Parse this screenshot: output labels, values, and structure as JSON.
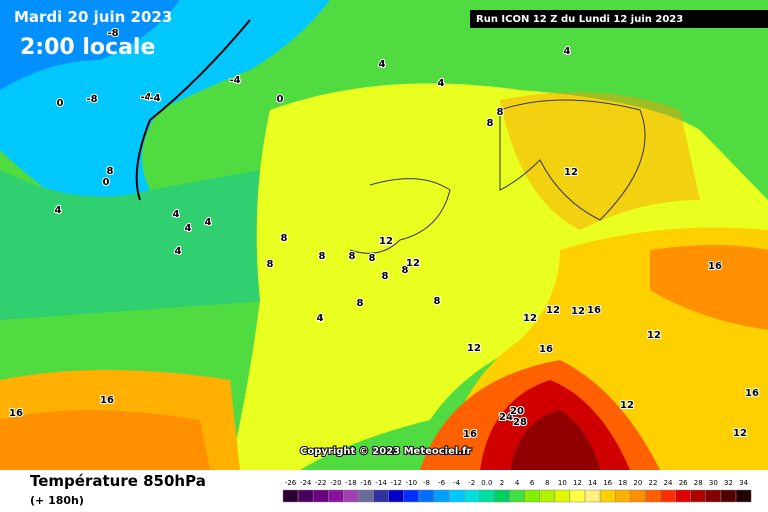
{
  "header": {
    "date": "Mardi 20 juin 2023",
    "time": "2:00 locale",
    "run": "Run ICON 12 Z du Lundi 12 juin 2023"
  },
  "copyright": "Copyright © 2023 Meteociel.fr",
  "footer": {
    "title": "Température 850hPa",
    "subtitle": "(+ 180h)"
  },
  "scale": [
    {
      "label": "-26",
      "color": "#2b0030"
    },
    {
      "label": "-24",
      "color": "#4a0060"
    },
    {
      "label": "-22",
      "color": "#6a0080"
    },
    {
      "label": "-20",
      "color": "#8a10a0"
    },
    {
      "label": "-18",
      "color": "#a040b0"
    },
    {
      "label": "-16",
      "color": "#6a6a9a"
    },
    {
      "label": "-14",
      "color": "#3030a0"
    },
    {
      "label": "-12",
      "color": "#0000c8"
    },
    {
      "label": "-10",
      "color": "#0030ff"
    },
    {
      "label": "-8",
      "color": "#0070ff"
    },
    {
      "label": "-6",
      "color": "#00a0ff"
    },
    {
      "label": "-4",
      "color": "#00c8ff"
    },
    {
      "label": "-2",
      "color": "#00e0e0"
    },
    {
      "label": "0.0",
      "color": "#00e0a0"
    },
    {
      "label": "2",
      "color": "#00d060"
    },
    {
      "label": "4",
      "color": "#40e040"
    },
    {
      "label": "6",
      "color": "#80f000"
    },
    {
      "label": "8",
      "color": "#b0f000"
    },
    {
      "label": "10",
      "color": "#e0f800"
    },
    {
      "label": "12",
      "color": "#ffff40"
    },
    {
      "label": "14",
      "color": "#fff080"
    },
    {
      "label": "16",
      "color": "#ffd000"
    },
    {
      "label": "18",
      "color": "#ffb000"
    },
    {
      "label": "20",
      "color": "#ff9000"
    },
    {
      "label": "22",
      "color": "#ff6000"
    },
    {
      "label": "24",
      "color": "#ff3000"
    },
    {
      "label": "26",
      "color": "#e00000"
    },
    {
      "label": "28",
      "color": "#b00000"
    },
    {
      "label": "30",
      "color": "#800000"
    },
    {
      "label": "32",
      "color": "#500000"
    },
    {
      "label": "34",
      "color": "#200000"
    }
  ],
  "contour_labels": [
    "-8",
    "-4",
    "-4",
    "-8",
    "0",
    "-4",
    "4",
    "4",
    "8",
    "8",
    "8",
    "0",
    "4",
    "4",
    "4",
    "4",
    "4",
    "8",
    "8",
    "8",
    "8",
    "8",
    "8",
    "8",
    "8",
    "8",
    "12",
    "12",
    "12",
    "12",
    "12",
    "12",
    "12",
    "16",
    "16",
    "16",
    "16",
    "16",
    "16",
    "12",
    "12",
    "12",
    "16",
    "24",
    "20",
    "28",
    "4",
    "0",
    "4"
  ]
}
